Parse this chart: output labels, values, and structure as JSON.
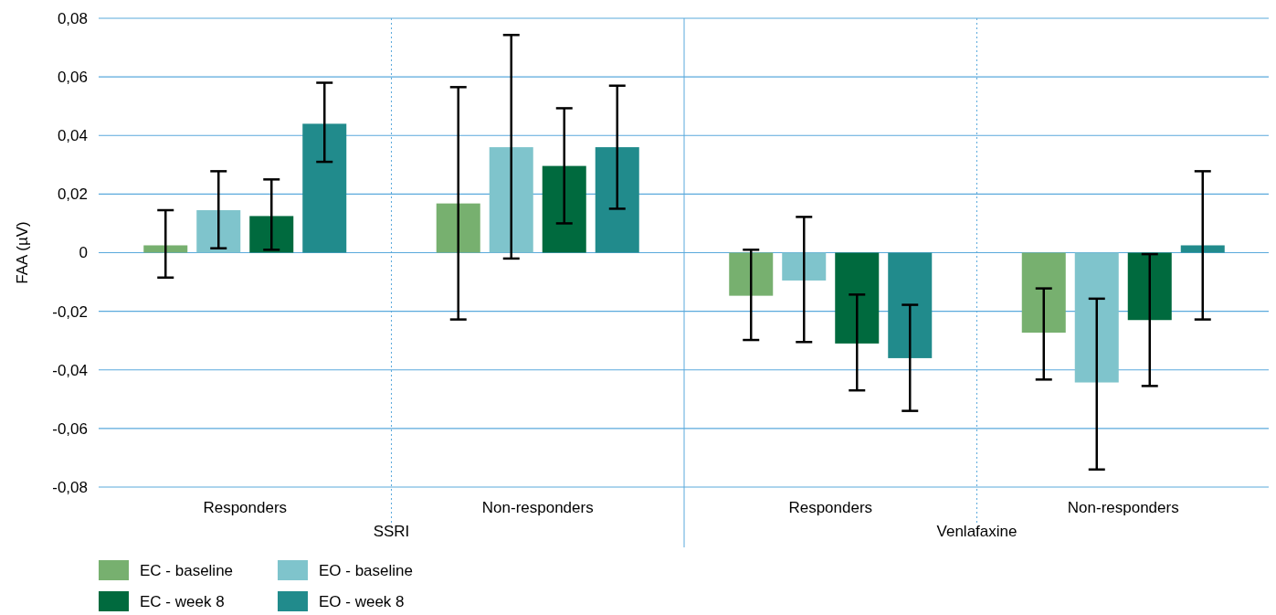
{
  "chart_data": {
    "type": "bar",
    "ylabel": "FAA (µV)",
    "categories": [
      "Responders",
      "Non-responders",
      "Responders",
      "Non-responders"
    ],
    "annotations": [
      "SSRI",
      "Venlafaxine"
    ],
    "series": [
      {
        "name": "EC - baseline",
        "color": "#77b06f",
        "values": [
          0.0025,
          0.0168,
          -0.0147,
          -0.0273
        ],
        "errors": [
          [
            -0.0085,
            0.0145
          ],
          [
            -0.0228,
            0.0565
          ],
          [
            -0.0298,
            0.001
          ],
          [
            -0.0433,
            -0.0122
          ]
        ]
      },
      {
        "name": "EO - baseline",
        "color": "#7fc4cc",
        "values": [
          0.0145,
          0.036,
          -0.0095,
          -0.0443
        ],
        "errors": [
          [
            0.0015,
            0.0278
          ],
          [
            -0.002,
            0.0743
          ],
          [
            -0.0305,
            0.0122
          ],
          [
            -0.074,
            -0.0157
          ]
        ]
      },
      {
        "name": "EC - week 8",
        "color": "#006a3e",
        "values": [
          0.0125,
          0.0296,
          -0.031,
          -0.023
        ],
        "errors": [
          [
            0.001,
            0.025
          ],
          [
            0.01,
            0.0493
          ],
          [
            -0.047,
            -0.0143
          ],
          [
            -0.0455,
            -0.0005
          ]
        ]
      },
      {
        "name": "EO - week 8",
        "color": "#218b8c",
        "values": [
          0.044,
          0.036,
          -0.036,
          0.0025
        ],
        "errors": [
          [
            0.031,
            0.058
          ],
          [
            0.015,
            0.057
          ],
          [
            -0.054,
            -0.0178
          ],
          [
            -0.0228,
            0.0278
          ]
        ]
      }
    ],
    "ylim": [
      -0.08,
      0.08
    ],
    "yticks": [
      {
        "value": -0.08,
        "label": "-0,08"
      },
      {
        "value": -0.06,
        "label": "-0,06"
      },
      {
        "value": -0.04,
        "label": "-0,04"
      },
      {
        "value": -0.02,
        "label": "-0,02"
      },
      0,
      {
        "value": 0.02,
        "label": "0,02"
      },
      {
        "value": 0.04,
        "label": "0,04"
      },
      {
        "value": 0.06,
        "label": "0,06"
      },
      {
        "value": 0.08,
        "label": "0,08"
      }
    ],
    "grid": "y",
    "legend": "bottom left"
  }
}
